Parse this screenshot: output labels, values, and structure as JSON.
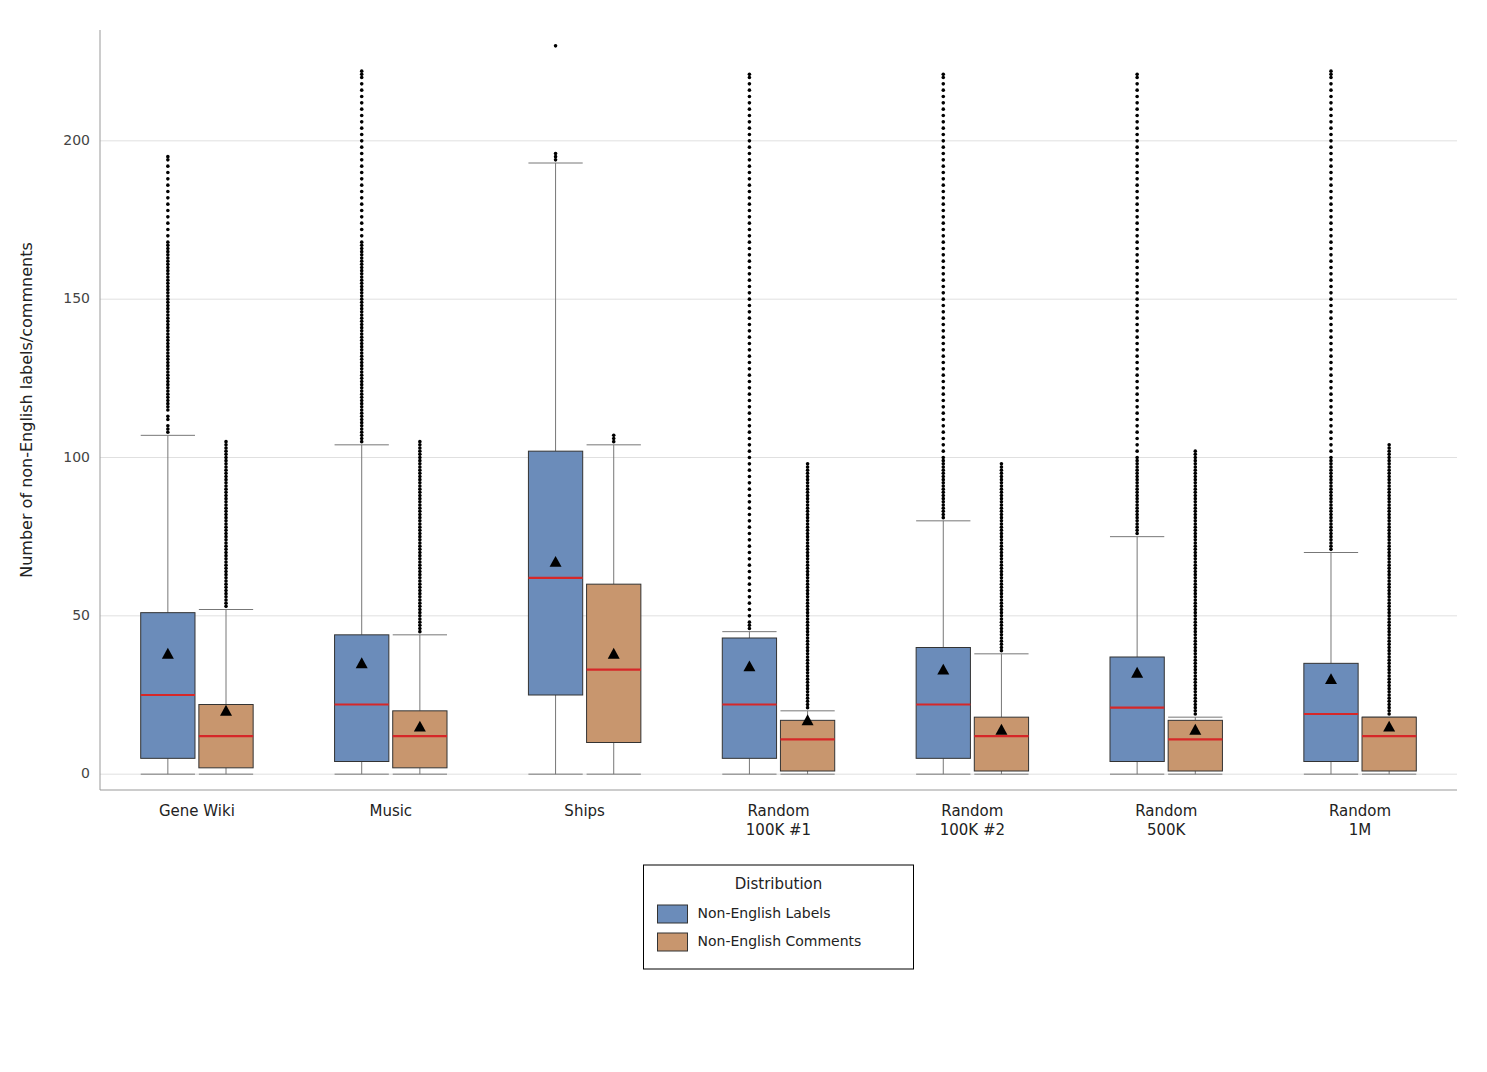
{
  "chart_data": {
    "type": "box",
    "y_label": "Number of non-English labels/commnents",
    "categories": [
      "Gene Wiki",
      "Music",
      "Ships",
      "Random\n100K #1",
      "Random\n100K #2",
      "Random\n500K",
      "Random\n1M"
    ],
    "ylim": [
      -5,
      235
    ],
    "yticks": [
      0,
      50,
      100,
      150,
      200
    ],
    "grid": true,
    "legend": "bottom",
    "legend_title": "Distribution",
    "series": [
      {
        "name": "Non-English Labels",
        "color": "#6b8cba",
        "q1": [
          5,
          4,
          25,
          5,
          5,
          4,
          4
        ],
        "median": [
          25,
          22,
          62,
          22,
          22,
          21,
          19
        ],
        "q3": [
          51,
          44,
          102,
          43,
          40,
          37,
          35
        ],
        "mean": [
          38,
          35,
          67,
          34,
          33,
          32,
          30
        ],
        "whislo": [
          0,
          0,
          0,
          0,
          0,
          0,
          0
        ],
        "whishi": [
          107,
          104,
          193,
          45,
          80,
          75,
          70
        ],
        "fliers": [
          [
            108,
            109,
            110,
            112,
            113,
            115,
            116,
            117,
            118,
            119,
            120,
            121,
            122,
            123,
            124,
            125,
            126,
            127,
            128,
            129,
            130,
            131,
            132,
            133,
            134,
            135,
            136,
            137,
            138,
            139,
            140,
            141,
            142,
            143,
            144,
            145,
            146,
            147,
            148,
            149,
            150,
            151,
            152,
            153,
            154,
            155,
            156,
            157,
            158,
            159,
            160,
            161,
            162,
            163,
            164,
            165,
            166,
            167,
            168,
            170,
            172,
            174,
            176,
            178,
            180,
            182,
            184,
            186,
            188,
            190,
            192,
            194,
            195
          ],
          [
            105,
            106,
            107,
            108,
            109,
            110,
            111,
            112,
            113,
            114,
            115,
            116,
            117,
            118,
            119,
            120,
            121,
            122,
            123,
            124,
            125,
            126,
            127,
            128,
            129,
            130,
            131,
            132,
            133,
            134,
            135,
            136,
            137,
            138,
            139,
            140,
            141,
            142,
            143,
            144,
            145,
            146,
            147,
            148,
            149,
            150,
            151,
            152,
            153,
            154,
            155,
            156,
            157,
            158,
            159,
            160,
            161,
            162,
            163,
            164,
            165,
            166,
            167,
            168,
            170,
            172,
            174,
            176,
            178,
            180,
            182,
            184,
            186,
            188,
            190,
            192,
            194,
            196,
            198,
            200,
            202,
            204,
            206,
            208,
            210,
            212,
            214,
            216,
            218,
            220,
            221,
            222
          ],
          [
            194,
            195,
            196,
            230
          ],
          [
            46,
            47,
            48,
            50,
            52,
            54,
            56,
            58,
            60,
            62,
            64,
            66,
            68,
            70,
            72,
            74,
            76,
            78,
            80,
            82,
            84,
            86,
            88,
            90,
            92,
            94,
            96,
            98,
            100,
            102,
            104,
            106,
            108,
            110,
            112,
            114,
            116,
            118,
            120,
            122,
            124,
            126,
            128,
            130,
            132,
            134,
            136,
            138,
            140,
            142,
            144,
            146,
            148,
            150,
            152,
            154,
            156,
            158,
            160,
            162,
            164,
            166,
            168,
            170,
            172,
            174,
            176,
            178,
            180,
            182,
            184,
            186,
            188,
            190,
            192,
            194,
            196,
            198,
            200,
            202,
            204,
            206,
            208,
            210,
            212,
            214,
            216,
            218,
            220,
            221
          ],
          [
            81,
            82,
            83,
            84,
            85,
            86,
            87,
            88,
            89,
            90,
            91,
            92,
            93,
            94,
            95,
            96,
            97,
            98,
            99,
            100,
            102,
            104,
            106,
            108,
            110,
            112,
            114,
            116,
            118,
            120,
            122,
            124,
            126,
            128,
            130,
            132,
            134,
            136,
            138,
            140,
            142,
            144,
            146,
            148,
            150,
            152,
            154,
            156,
            158,
            160,
            162,
            164,
            166,
            168,
            170,
            172,
            174,
            176,
            178,
            180,
            182,
            184,
            186,
            188,
            190,
            192,
            194,
            196,
            198,
            200,
            202,
            204,
            206,
            208,
            210,
            212,
            214,
            216,
            218,
            220,
            221
          ],
          [
            76,
            77,
            78,
            79,
            80,
            81,
            82,
            83,
            84,
            85,
            86,
            87,
            88,
            89,
            90,
            91,
            92,
            93,
            94,
            95,
            96,
            97,
            98,
            99,
            100,
            102,
            104,
            106,
            108,
            110,
            112,
            114,
            116,
            118,
            120,
            122,
            124,
            126,
            128,
            130,
            132,
            134,
            136,
            138,
            140,
            142,
            144,
            146,
            148,
            150,
            152,
            154,
            156,
            158,
            160,
            162,
            164,
            166,
            168,
            170,
            172,
            174,
            176,
            178,
            180,
            182,
            184,
            186,
            188,
            190,
            192,
            194,
            196,
            198,
            200,
            202,
            204,
            206,
            208,
            210,
            212,
            214,
            216,
            218,
            220,
            221
          ],
          [
            71,
            72,
            73,
            74,
            75,
            76,
            77,
            78,
            79,
            80,
            81,
            82,
            83,
            84,
            85,
            86,
            87,
            88,
            89,
            90,
            91,
            92,
            93,
            94,
            95,
            96,
            97,
            98,
            99,
            100,
            102,
            104,
            106,
            108,
            110,
            112,
            114,
            116,
            118,
            120,
            122,
            124,
            126,
            128,
            130,
            132,
            134,
            136,
            138,
            140,
            142,
            144,
            146,
            148,
            150,
            152,
            154,
            156,
            158,
            160,
            162,
            164,
            166,
            168,
            170,
            172,
            174,
            176,
            178,
            180,
            182,
            184,
            186,
            188,
            190,
            192,
            194,
            196,
            198,
            200,
            202,
            204,
            206,
            208,
            210,
            212,
            214,
            216,
            218,
            220,
            221,
            222
          ]
        ]
      },
      {
        "name": "Non-English Comments",
        "color": "#c8966e",
        "q1": [
          2,
          2,
          10,
          1,
          1,
          1,
          1
        ],
        "median": [
          12,
          12,
          33,
          11,
          12,
          11,
          12
        ],
        "q3": [
          22,
          20,
          60,
          17,
          18,
          17,
          18
        ],
        "mean": [
          20,
          15,
          38,
          17,
          14,
          14,
          15
        ],
        "whislo": [
          0,
          0,
          0,
          0,
          0,
          0,
          0
        ],
        "whishi": [
          52,
          44,
          104,
          20,
          38,
          18,
          18
        ],
        "fliers": [
          [
            53,
            54,
            55,
            56,
            57,
            58,
            59,
            60,
            61,
            62,
            63,
            64,
            65,
            66,
            67,
            68,
            69,
            70,
            71,
            72,
            73,
            74,
            75,
            76,
            77,
            78,
            79,
            80,
            81,
            82,
            83,
            84,
            85,
            86,
            87,
            88,
            89,
            90,
            91,
            92,
            93,
            94,
            95,
            96,
            97,
            98,
            99,
            100,
            101,
            102,
            103,
            104,
            105
          ],
          [
            45,
            46,
            47,
            48,
            49,
            50,
            51,
            52,
            53,
            54,
            55,
            56,
            57,
            58,
            59,
            60,
            61,
            62,
            63,
            64,
            65,
            66,
            67,
            68,
            69,
            70,
            71,
            72,
            73,
            74,
            75,
            76,
            77,
            78,
            79,
            80,
            81,
            82,
            83,
            84,
            85,
            86,
            87,
            88,
            89,
            90,
            91,
            92,
            93,
            94,
            95,
            96,
            97,
            98,
            99,
            100,
            101,
            102,
            103,
            104,
            105
          ],
          [
            105,
            106,
            107
          ],
          [
            21,
            22,
            23,
            24,
            25,
            26,
            27,
            28,
            29,
            30,
            31,
            32,
            33,
            34,
            35,
            36,
            37,
            38,
            39,
            40,
            41,
            42,
            43,
            44,
            45,
            46,
            47,
            48,
            49,
            50,
            51,
            52,
            53,
            54,
            55,
            56,
            57,
            58,
            59,
            60,
            61,
            62,
            63,
            64,
            65,
            66,
            67,
            68,
            69,
            70,
            71,
            72,
            73,
            74,
            75,
            76,
            77,
            78,
            79,
            80,
            81,
            82,
            83,
            84,
            85,
            86,
            87,
            88,
            89,
            90,
            91,
            92,
            93,
            94,
            95,
            96,
            97,
            98
          ],
          [
            39,
            40,
            41,
            42,
            43,
            44,
            45,
            46,
            47,
            48,
            49,
            50,
            51,
            52,
            53,
            54,
            55,
            56,
            57,
            58,
            59,
            60,
            61,
            62,
            63,
            64,
            65,
            66,
            67,
            68,
            69,
            70,
            71,
            72,
            73,
            74,
            75,
            76,
            77,
            78,
            79,
            80,
            81,
            82,
            83,
            84,
            85,
            86,
            87,
            88,
            89,
            90,
            91,
            92,
            93,
            94,
            95,
            96,
            97,
            98
          ],
          [
            19,
            20,
            21,
            22,
            23,
            24,
            25,
            26,
            27,
            28,
            29,
            30,
            31,
            32,
            33,
            34,
            35,
            36,
            37,
            38,
            39,
            40,
            41,
            42,
            43,
            44,
            45,
            46,
            47,
            48,
            49,
            50,
            51,
            52,
            53,
            54,
            55,
            56,
            57,
            58,
            59,
            60,
            61,
            62,
            63,
            64,
            65,
            66,
            67,
            68,
            69,
            70,
            71,
            72,
            73,
            74,
            75,
            76,
            77,
            78,
            79,
            80,
            81,
            82,
            83,
            84,
            85,
            86,
            87,
            88,
            89,
            90,
            91,
            92,
            93,
            94,
            95,
            96,
            97,
            98,
            99,
            100,
            101,
            102
          ],
          [
            19,
            20,
            21,
            22,
            23,
            24,
            25,
            26,
            27,
            28,
            29,
            30,
            31,
            32,
            33,
            34,
            35,
            36,
            37,
            38,
            39,
            40,
            41,
            42,
            43,
            44,
            45,
            46,
            47,
            48,
            49,
            50,
            51,
            52,
            53,
            54,
            55,
            56,
            57,
            58,
            59,
            60,
            61,
            62,
            63,
            64,
            65,
            66,
            67,
            68,
            69,
            70,
            71,
            72,
            73,
            74,
            75,
            76,
            77,
            78,
            79,
            80,
            81,
            82,
            83,
            84,
            85,
            86,
            87,
            88,
            89,
            90,
            91,
            92,
            93,
            94,
            95,
            96,
            97,
            98,
            99,
            100,
            101,
            102,
            103,
            104
          ]
        ]
      }
    ]
  }
}
